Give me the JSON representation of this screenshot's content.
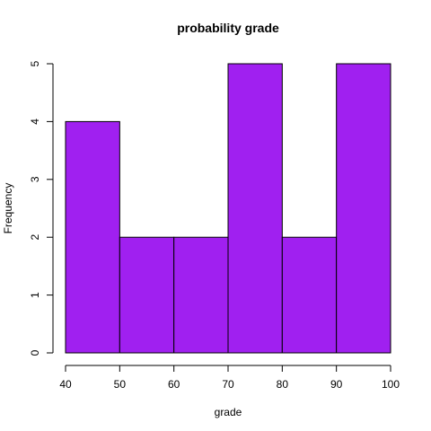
{
  "chart_data": {
    "type": "bar",
    "title": "probability grade",
    "xlabel": "grade",
    "ylabel": "Frequency",
    "bins": [
      {
        "from": 40,
        "to": 50,
        "count": 4
      },
      {
        "from": 50,
        "to": 60,
        "count": 2
      },
      {
        "from": 60,
        "to": 70,
        "count": 2
      },
      {
        "from": 70,
        "to": 80,
        "count": 5
      },
      {
        "from": 80,
        "to": 90,
        "count": 2
      },
      {
        "from": 90,
        "to": 100,
        "count": 5
      }
    ],
    "xlim": [
      40,
      100
    ],
    "ylim": [
      0,
      5
    ],
    "xticks": [
      40,
      50,
      60,
      70,
      80,
      90,
      100
    ],
    "yticks": [
      0,
      1,
      2,
      3,
      4,
      5
    ],
    "grid": false,
    "bar_color": "#A020F0",
    "edge_color": "#000000"
  }
}
